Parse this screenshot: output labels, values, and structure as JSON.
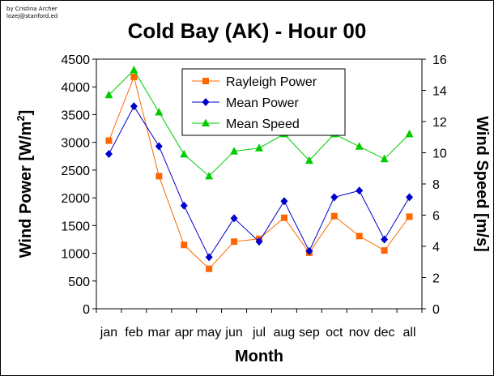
{
  "credit": {
    "line1": "by Cristina Archer",
    "line2": "lozej@stanford.ed"
  },
  "colors": {
    "rayleigh": "#ff6600",
    "mean_power": "#0000cc",
    "mean_speed": "#00cc00",
    "axis": "#000000"
  },
  "chart_data": {
    "type": "line",
    "title": "Cold Bay (AK) - Hour 00",
    "xlabel": "Month",
    "ylabel_left": "Wind Power [W/m²]",
    "ylabel_left_parts": {
      "base": "Wind Power [W/m",
      "sup": "2",
      "end": "]"
    },
    "ylabel_right": "Wind Speed [m/s]",
    "categories": [
      "jan",
      "feb",
      "mar",
      "apr",
      "may",
      "jun",
      "jul",
      "aug",
      "sep",
      "oct",
      "nov",
      "dec",
      "all"
    ],
    "x_tick_labels": [
      "jan",
      "feb",
      "mar",
      "apr",
      "may",
      "jun",
      "jul",
      "aug",
      "sep",
      "oct",
      "nov",
      "dec",
      "all"
    ],
    "ylim_left": [
      0,
      4500
    ],
    "yticks_left": [
      "0",
      "500",
      "1000",
      "1500",
      "2000",
      "2500",
      "3000",
      "3500",
      "4000",
      "4500"
    ],
    "ylim_right": [
      0,
      16
    ],
    "yticks_right": [
      "0",
      "2",
      "4",
      "6",
      "8",
      "10",
      "12",
      "14",
      "16"
    ],
    "grid": false,
    "legend_position": "top-center",
    "series": [
      {
        "name": "Rayleigh Power",
        "axis": "left",
        "marker": "square",
        "color": "#ff6600",
        "values": [
          3030,
          4180,
          2390,
          1150,
          720,
          1210,
          1260,
          1640,
          1010,
          1670,
          1310,
          1050,
          1660
        ]
      },
      {
        "name": "Mean Power",
        "axis": "left",
        "marker": "diamond",
        "color": "#0000cc",
        "values": [
          2790,
          3650,
          2930,
          1860,
          930,
          1630,
          1210,
          1940,
          1040,
          2010,
          2130,
          1250,
          2010
        ]
      },
      {
        "name": "Mean Speed",
        "axis": "right",
        "marker": "triangle",
        "color": "#00cc00",
        "values": [
          13.7,
          15.3,
          12.6,
          9.9,
          8.5,
          10.1,
          10.3,
          11.2,
          9.5,
          11.2,
          10.4,
          9.6,
          11.2
        ]
      }
    ]
  }
}
